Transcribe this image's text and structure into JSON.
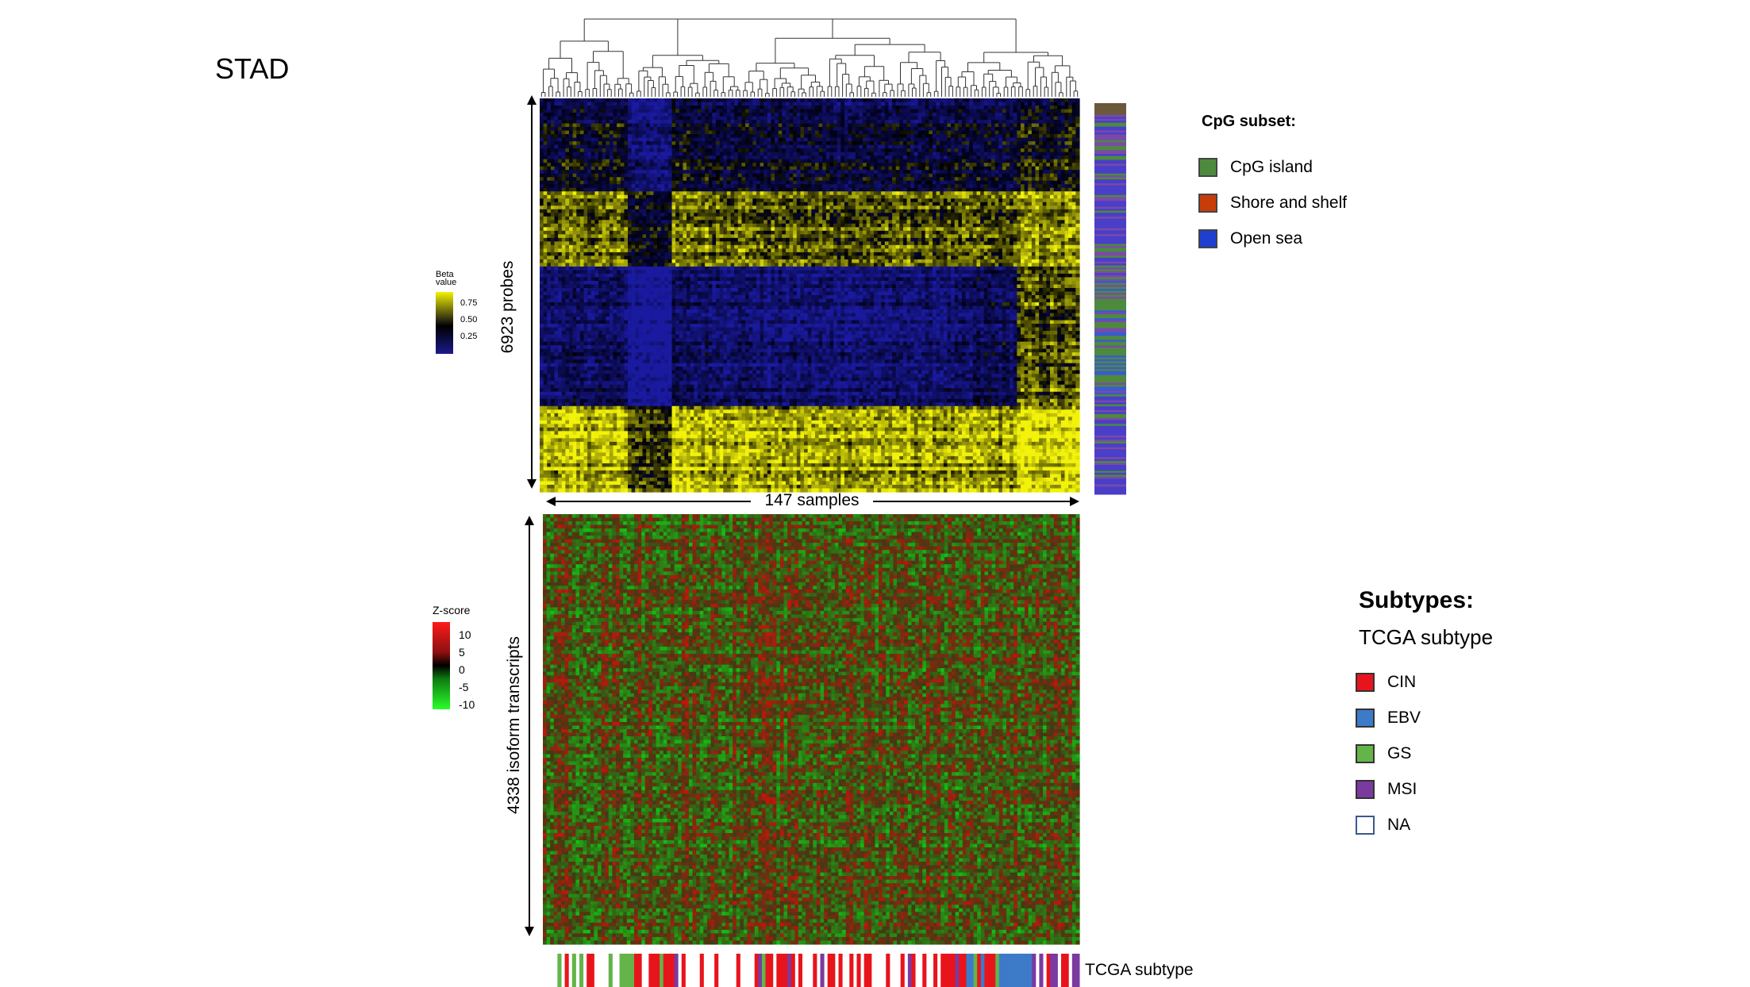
{
  "title": "STAD",
  "chart_data": [
    {
      "type": "heatmap",
      "name": "methylation",
      "rows_label": "6923 probes",
      "cols_label": "147 samples",
      "n_rows": 6923,
      "n_cols": 147,
      "colorbar": {
        "title_line1": "Beta",
        "title_line2": "value",
        "ticks": [
          "0.75",
          "0.50",
          "0.25"
        ],
        "colors": [
          "#f2f200",
          "#000000",
          "#1a1a8c"
        ]
      },
      "row_annotation": {
        "title": "CpG subset:",
        "categories": [
          {
            "label": "CpG island",
            "color": "#4e8a3e"
          },
          {
            "label": "Shore and shelf",
            "color": "#c83c0a"
          },
          {
            "label": "Open sea",
            "color": "#1f3fd0"
          }
        ]
      },
      "dendrogram": "hierarchical clustering of 147 samples"
    },
    {
      "type": "heatmap",
      "name": "isoform expression",
      "rows_label": "4338 isoform transcripts",
      "n_rows": 4338,
      "n_cols": 147,
      "colorbar": {
        "title": "Z-score",
        "ticks": [
          "10",
          "5",
          "0",
          "-5",
          "-10"
        ],
        "colors": [
          "#ff0000",
          "#000000",
          "#00ff00"
        ]
      },
      "column_annotation": {
        "track_label": "TCGA subtype",
        "heading": "Subtypes:",
        "subheading": "TCGA subtype",
        "categories": [
          {
            "label": "CIN",
            "color": "#e8141c"
          },
          {
            "label": "EBV",
            "color": "#3d7ac8"
          },
          {
            "label": "GS",
            "color": "#64b44a"
          },
          {
            "label": "MSI",
            "color": "#7a3aa0"
          },
          {
            "label": "NA",
            "color": "#ffffff"
          }
        ]
      }
    }
  ]
}
